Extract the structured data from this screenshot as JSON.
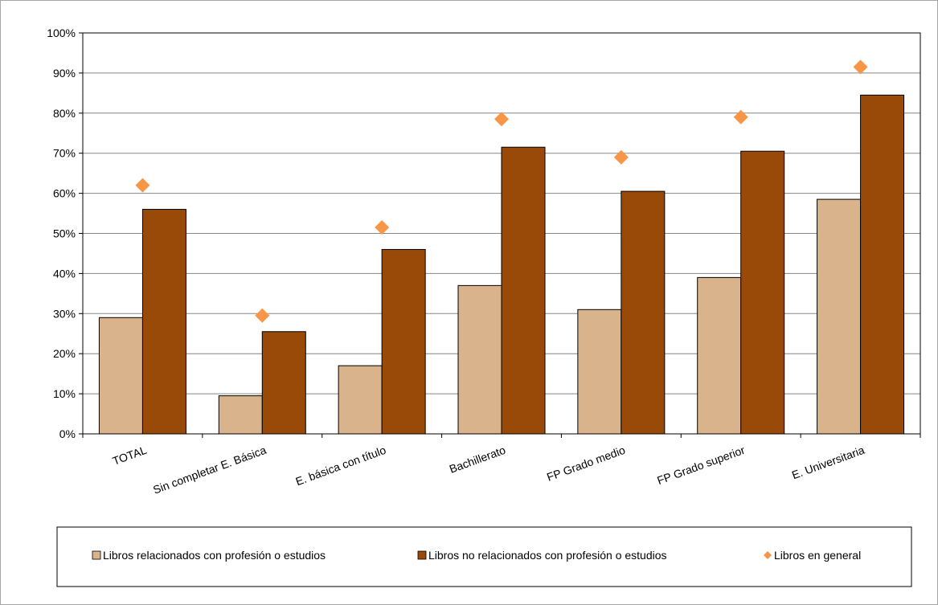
{
  "chart_data": {
    "type": "bar",
    "categories": [
      "TOTAL",
      "Sin completar E. Básica",
      "E. básica con título",
      "Bachillerato",
      "FP  Grado medio",
      "FP Grado superior",
      "E. Universitaria"
    ],
    "series": [
      {
        "name": "Libros relacionados con profesión o estudios",
        "kind": "bar",
        "color": "#d9b38c",
        "values": [
          29,
          9.5,
          17,
          37,
          31,
          39,
          58.5
        ]
      },
      {
        "name": "Libros no relacionados con profesión o estudios",
        "kind": "bar",
        "color": "#994a08",
        "values": [
          56,
          25.5,
          46,
          71.5,
          60.5,
          70.5,
          84.5
        ]
      },
      {
        "name": "Libros en general",
        "kind": "marker",
        "color": "#f79646",
        "values": [
          62,
          29.5,
          51.5,
          78.5,
          69,
          79,
          91.5
        ]
      }
    ],
    "ylim": [
      0,
      100
    ],
    "yticks": [
      0,
      10,
      20,
      30,
      40,
      50,
      60,
      70,
      80,
      90,
      100
    ],
    "ytick_suffix": "%",
    "grid": true,
    "legend_position": "bottom",
    "title": "",
    "xlabel": "",
    "ylabel": ""
  }
}
